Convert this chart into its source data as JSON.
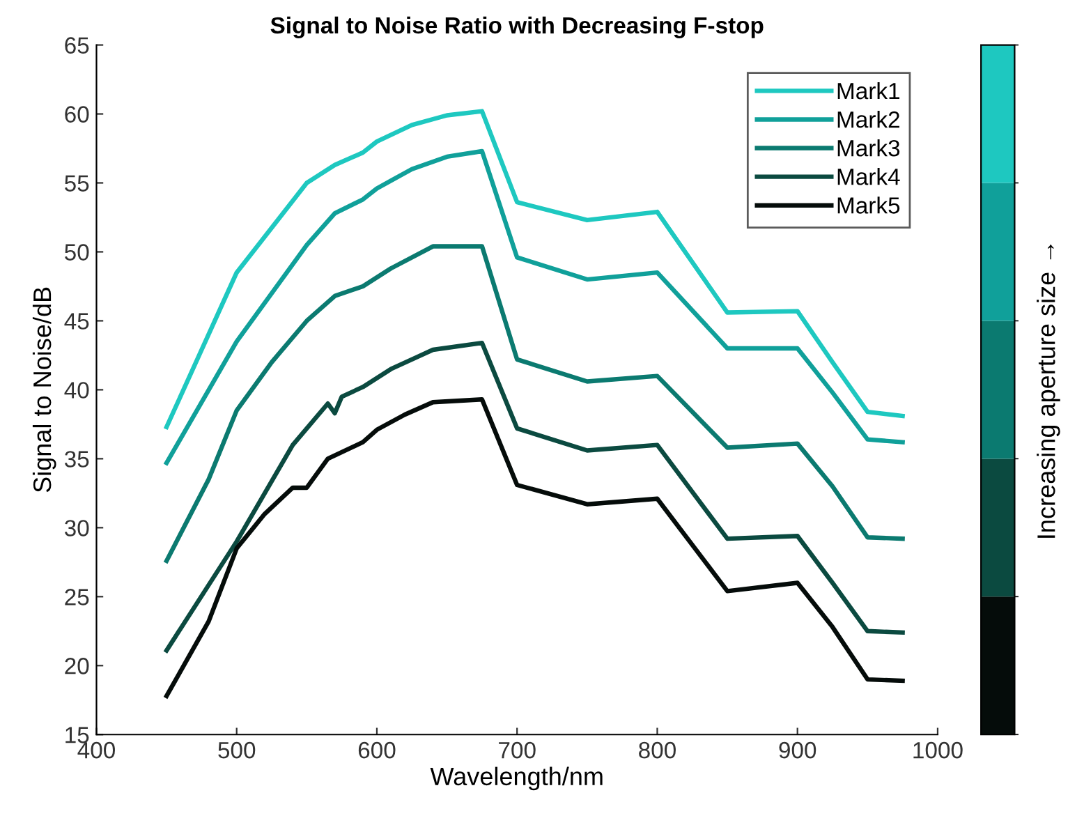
{
  "chart_data": {
    "type": "line",
    "title": "Signal to Noise Ratio with Decreasing F-stop",
    "xlabel": "Wavelength/nm",
    "ylabel": "Signal to Noise/dB",
    "clabel": "Increasing aperture size →",
    "xlim": [
      400,
      1000
    ],
    "xticks": [
      400,
      500,
      600,
      700,
      800,
      900,
      1000
    ],
    "ylim": [
      15,
      65
    ],
    "yticks": [
      15,
      20,
      25,
      30,
      35,
      40,
      45,
      50,
      55,
      60,
      65
    ],
    "grid": false,
    "legend": "top right",
    "line_style": "solid",
    "series": [
      {
        "name": "Mark1",
        "color": "#1ec8c0",
        "x": [
          450,
          500,
          550,
          570,
          590,
          600,
          625,
          650,
          675,
          700,
          750,
          800,
          850,
          900,
          925,
          950,
          975
        ],
        "values": [
          37.3,
          48.5,
          55,
          56.3,
          57.2,
          58,
          59.2,
          59.9,
          60.2,
          53.6,
          52.3,
          52.9,
          45.6,
          45.7,
          42,
          38.4,
          38.1
        ]
      },
      {
        "name": "Mark2",
        "color": "#10a09a",
        "x": [
          450,
          500,
          550,
          570,
          590,
          600,
          625,
          650,
          675,
          700,
          750,
          800,
          850,
          900,
          925,
          950,
          975
        ],
        "values": [
          34.7,
          43.5,
          50.5,
          52.8,
          53.8,
          54.6,
          56,
          56.9,
          57.3,
          49.6,
          48,
          48.5,
          43,
          43,
          39.8,
          36.4,
          36.2
        ]
      },
      {
        "name": "Mark3",
        "color": "#0b7a70",
        "x": [
          450,
          480,
          500,
          525,
          550,
          570,
          590,
          610,
          640,
          675,
          700,
          750,
          800,
          850,
          900,
          925,
          950,
          975
        ],
        "values": [
          27.6,
          33.5,
          38.5,
          42,
          45,
          46.8,
          47.5,
          48.8,
          50.4,
          50.4,
          42.2,
          40.6,
          41,
          35.8,
          36.1,
          33,
          29.3,
          29.2
        ]
      },
      {
        "name": "Mark4",
        "color": "#0b4a40",
        "x": [
          450,
          500,
          540,
          565,
          570,
          575,
          590,
          610,
          640,
          675,
          700,
          750,
          800,
          850,
          900,
          925,
          950,
          975
        ],
        "values": [
          21.1,
          29,
          36,
          39,
          38.3,
          39.5,
          40.2,
          41.5,
          42.9,
          43.4,
          37.2,
          35.6,
          36,
          29.2,
          29.4,
          26,
          22.5,
          22.4
        ]
      },
      {
        "name": "Mark5",
        "color": "#050c0a",
        "x": [
          450,
          480,
          500,
          520,
          540,
          550,
          565,
          590,
          600,
          620,
          640,
          675,
          700,
          750,
          800,
          850,
          900,
          925,
          950,
          975
        ],
        "values": [
          17.8,
          23.2,
          28.5,
          31,
          32.9,
          32.9,
          35,
          36.2,
          37.1,
          38.2,
          39.1,
          39.3,
          33.1,
          31.7,
          32.1,
          25.4,
          26,
          22.8,
          19,
          18.9
        ]
      }
    ]
  }
}
